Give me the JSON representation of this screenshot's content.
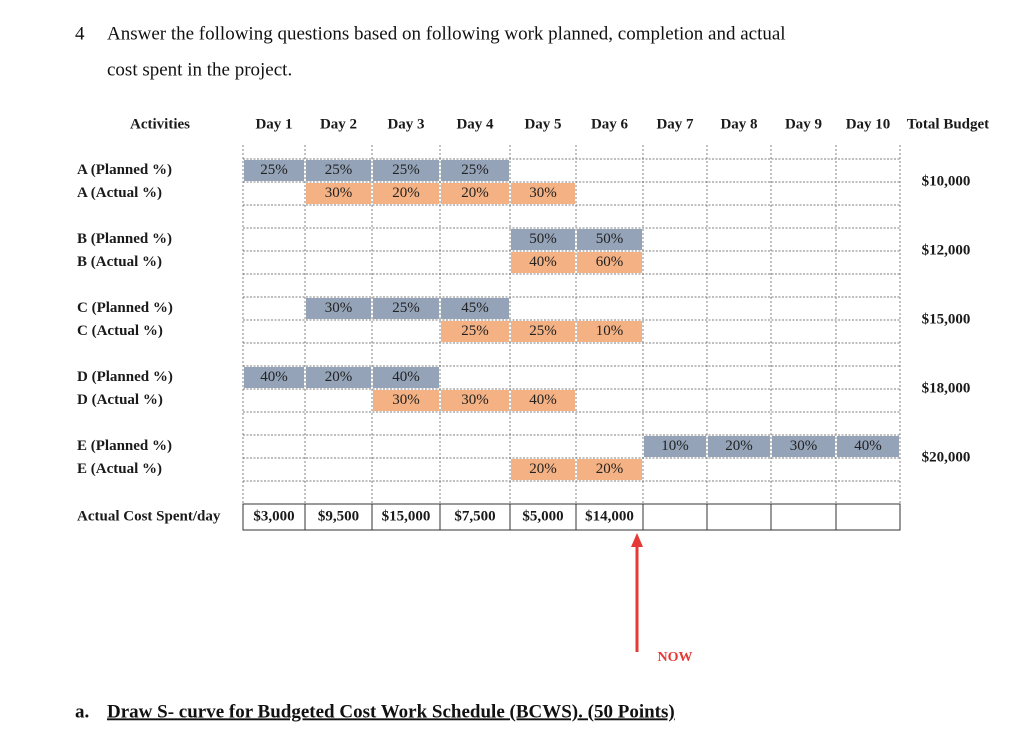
{
  "question": {
    "number": "4",
    "line1": "Answer the following questions based on following work planned, completion and actual",
    "line2": "cost spent in the project."
  },
  "table": {
    "header": {
      "activities": "Activities",
      "days": [
        "Day 1",
        "Day 2",
        "Day 3",
        "Day 4",
        "Day 5",
        "Day 6",
        "Day 7",
        "Day 8",
        "Day 9",
        "Day 10"
      ],
      "total": "Total Budget"
    },
    "activities": [
      {
        "planned_label": "A (Planned %)",
        "actual_label": "A (Actual %)",
        "planned": [
          "25%",
          "25%",
          "25%",
          "25%",
          null,
          null,
          null,
          null,
          null,
          null
        ],
        "actual": [
          null,
          "30%",
          "20%",
          "20%",
          "30%",
          null,
          null,
          null,
          null,
          null
        ],
        "budget": "$10,000"
      },
      {
        "planned_label": "B (Planned %)",
        "actual_label": "B (Actual %)",
        "planned": [
          null,
          null,
          null,
          null,
          "50%",
          "50%",
          null,
          null,
          null,
          null
        ],
        "actual": [
          null,
          null,
          null,
          null,
          "40%",
          "60%",
          null,
          null,
          null,
          null
        ],
        "budget": "$12,000"
      },
      {
        "planned_label": "C (Planned %)",
        "actual_label": "C (Actual %)",
        "planned": [
          null,
          "30%",
          "25%",
          "45%",
          null,
          null,
          null,
          null,
          null,
          null
        ],
        "actual": [
          null,
          null,
          null,
          "25%",
          "25%",
          "10%",
          null,
          null,
          null,
          null
        ],
        "budget": "$15,000"
      },
      {
        "planned_label": "D (Planned %)",
        "actual_label": "D (Actual %)",
        "planned": [
          "40%",
          "20%",
          "40%",
          null,
          null,
          null,
          null,
          null,
          null,
          null
        ],
        "actual": [
          null,
          null,
          "30%",
          "30%",
          "40%",
          null,
          null,
          null,
          null,
          null
        ],
        "budget": "$18,000"
      },
      {
        "planned_label": "E (Planned %)",
        "actual_label": "E (Actual %)",
        "planned": [
          null,
          null,
          null,
          null,
          null,
          null,
          "10%",
          "20%",
          "30%",
          "40%"
        ],
        "actual": [
          null,
          null,
          null,
          null,
          "20%",
          "20%",
          null,
          null,
          null,
          null
        ],
        "budget": "$20,000"
      }
    ],
    "cost_row": {
      "label": "Actual Cost Spent/day",
      "values": [
        "$3,000",
        "$9,500",
        "$15,000",
        "$7,500",
        "$5,000",
        "$14,000",
        null,
        null,
        null,
        null
      ]
    }
  },
  "marker": "NOW",
  "task": {
    "number": "a.",
    "text": "Draw S- curve for Budgeted Cost Work Schedule (BCWS). (50 Points)"
  }
}
